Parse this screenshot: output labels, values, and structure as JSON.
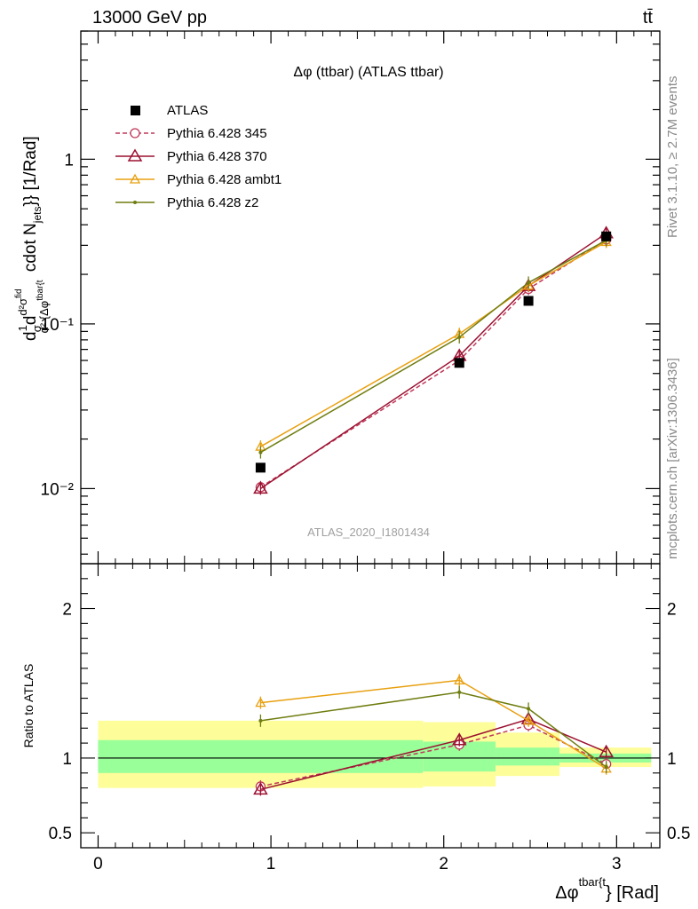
{
  "header": {
    "left": "13000 GeV pp",
    "right": "tt̄"
  },
  "side_labels": {
    "rivet": "Rivet 3.1.10, ≥ 2.7M events",
    "mcplots": "mcplots.cern.ch [arXiv:1306.3436]"
  },
  "watermark": "ATLAS_2020_I1801434",
  "chart_data": [
    {
      "panel": "main",
      "type": "line",
      "title": "Δφ (ttbar) (ATLAS ttbar)",
      "ylabel": "d¹/σ d d²σ^fid / d²{Δφ^tbar{t} cdot N_jets}} [1/Rad]",
      "yscale": "log",
      "xlim": [
        -0.1,
        3.25
      ],
      "ylim": [
        0.0035,
        6
      ],
      "yticks": [
        {
          "value": 1,
          "label": "1"
        },
        {
          "value": 0.1,
          "label": "10⁻¹"
        },
        {
          "value": 0.01,
          "label": "10⁻²"
        }
      ],
      "legend_position": "top-left",
      "data": {
        "name": "ATLAS",
        "x": [
          0.94,
          2.09,
          2.49,
          2.94
        ],
        "y": [
          0.0134,
          0.058,
          0.138,
          0.34
        ],
        "bins": [
          [
            0.0,
            1.88
          ],
          [
            1.88,
            2.3
          ],
          [
            2.3,
            2.67
          ],
          [
            2.67,
            3.2
          ]
        ]
      },
      "series": [
        {
          "name": "Pythia 6.428 345",
          "color": "#c0395a",
          "style": "dashed",
          "marker": "circle",
          "x": [
            0.94,
            2.09,
            2.49,
            2.94
          ],
          "y": [
            0.0102,
            0.06,
            0.163,
            0.325
          ]
        },
        {
          "name": "Pythia 6.428 370",
          "color": "#9b1030",
          "style": "solid",
          "marker": "triangle",
          "x": [
            0.94,
            2.09,
            2.49,
            2.94
          ],
          "y": [
            0.01,
            0.064,
            0.17,
            0.355
          ]
        },
        {
          "name": "Pythia 6.428 ambt1",
          "color": "#e8a010",
          "style": "solid",
          "marker": "triangle-small",
          "x": [
            0.94,
            2.09,
            2.49,
            2.94
          ],
          "y": [
            0.018,
            0.087,
            0.171,
            0.315
          ]
        },
        {
          "name": "Pythia 6.428 z2",
          "color": "#707d10",
          "style": "solid",
          "marker": "dot",
          "x": [
            0.94,
            2.09,
            2.49,
            2.94
          ],
          "y": [
            0.0166,
            0.083,
            0.178,
            0.322
          ]
        }
      ]
    },
    {
      "panel": "ratio",
      "type": "line",
      "ylabel": "Ratio to ATLAS",
      "xlabel": "Δφ^{tbar{t}} [Rad]",
      "xlim": [
        -0.1,
        3.25
      ],
      "ylim": [
        0.4,
        2.3
      ],
      "xticks": [
        {
          "value": 0,
          "label": "0"
        },
        {
          "value": 1,
          "label": "1"
        },
        {
          "value": 2,
          "label": "2"
        },
        {
          "value": 3,
          "label": "3"
        }
      ],
      "yticks": [
        {
          "value": 2,
          "label": "2"
        },
        {
          "value": 1,
          "label": "1"
        },
        {
          "value": 0.5,
          "label": "0.5"
        }
      ],
      "bands": {
        "bins": [
          [
            0.0,
            1.88
          ],
          [
            1.88,
            2.3
          ],
          [
            2.3,
            2.67
          ],
          [
            2.67,
            3.2
          ]
        ],
        "stat": [
          [
            0.9,
            1.12
          ],
          [
            0.91,
            1.11
          ],
          [
            0.95,
            1.07
          ],
          [
            0.97,
            1.03
          ]
        ],
        "total": [
          [
            0.8,
            1.25
          ],
          [
            0.81,
            1.24
          ],
          [
            0.88,
            1.17
          ],
          [
            0.94,
            1.07
          ]
        ]
      },
      "series": [
        {
          "name": "Pythia 6.428 345",
          "color": "#c0395a",
          "style": "dashed",
          "marker": "circle",
          "x": [
            0.94,
            2.09,
            2.49,
            2.94
          ],
          "y": [
            0.81,
            1.09,
            1.22,
            0.96
          ]
        },
        {
          "name": "Pythia 6.428 370",
          "color": "#9b1030",
          "style": "solid",
          "marker": "triangle",
          "x": [
            0.94,
            2.09,
            2.49,
            2.94
          ],
          "y": [
            0.79,
            1.12,
            1.26,
            1.04
          ]
        },
        {
          "name": "Pythia 6.428 ambt1",
          "color": "#e8a010",
          "style": "solid",
          "marker": "triangle-small",
          "x": [
            0.94,
            2.09,
            2.49,
            2.94
          ],
          "y": [
            1.37,
            1.52,
            1.25,
            0.93
          ]
        },
        {
          "name": "Pythia 6.428 z2",
          "color": "#707d10",
          "style": "solid",
          "marker": "dot",
          "x": [
            0.94,
            2.09,
            2.49,
            2.94
          ],
          "y": [
            1.25,
            1.44,
            1.33,
            0.94
          ]
        }
      ]
    }
  ]
}
